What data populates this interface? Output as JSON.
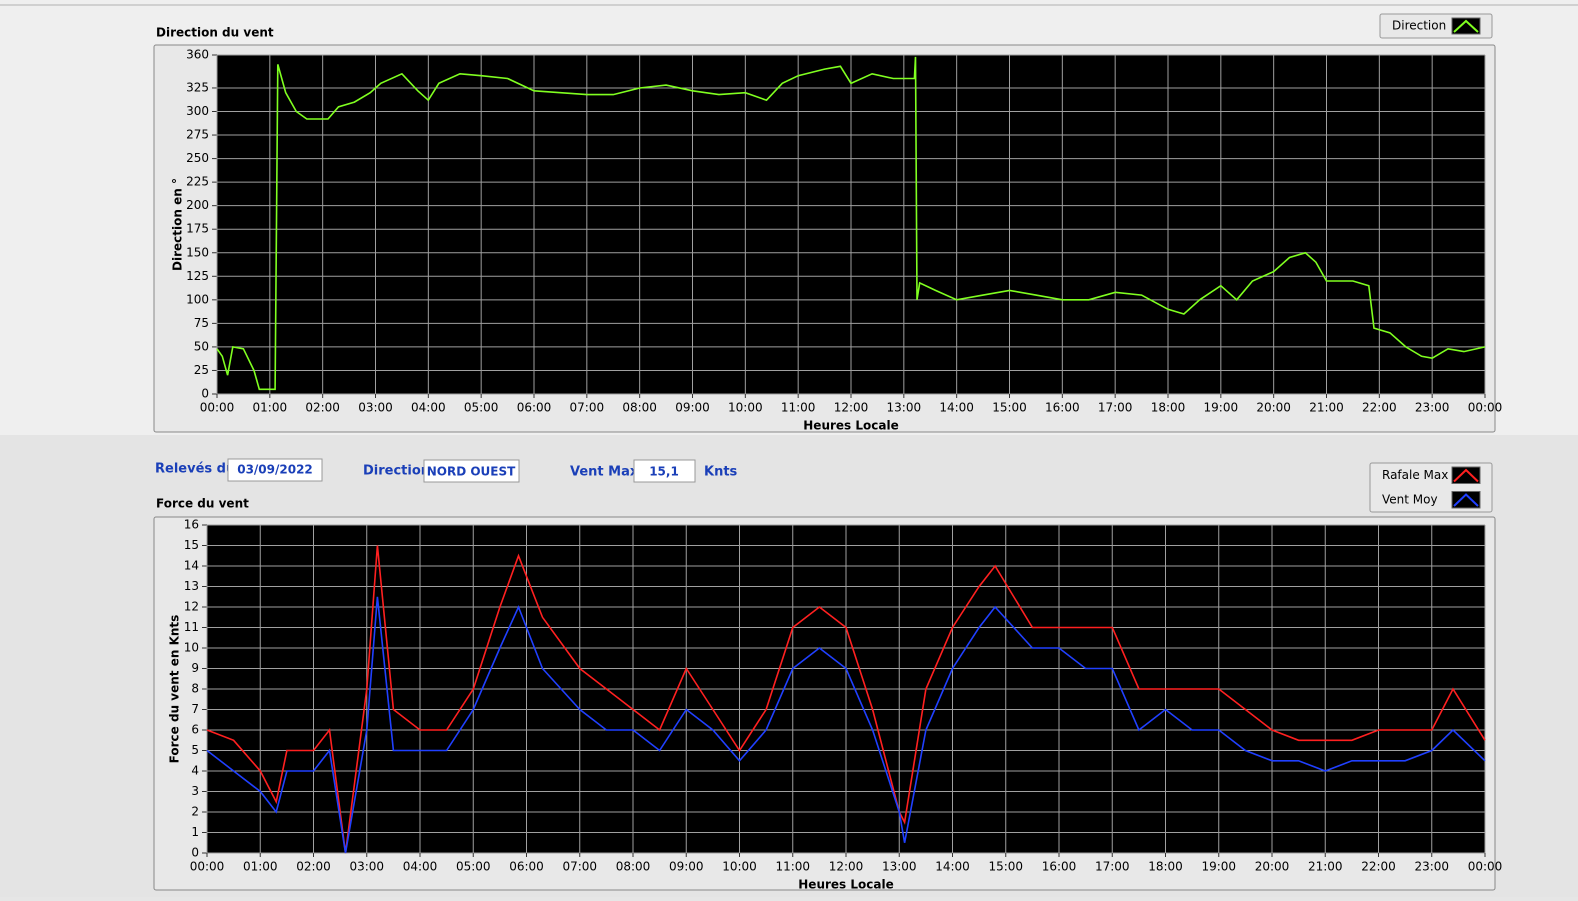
{
  "chart_data": [
    {
      "type": "line",
      "title": "Direction du vent",
      "x_label": "Heures Locale",
      "y_label": "Direction en °",
      "xlim": [
        0,
        24
      ],
      "xticks": [
        {
          "value": 0,
          "label": "00:00"
        },
        {
          "value": 1,
          "label": "01:00"
        },
        {
          "value": 2,
          "label": "02:00"
        },
        {
          "value": 3,
          "label": "03:00"
        },
        {
          "value": 4,
          "label": "04:00"
        },
        {
          "value": 5,
          "label": "05:00"
        },
        {
          "value": 6,
          "label": "06:00"
        },
        {
          "value": 7,
          "label": "07:00"
        },
        {
          "value": 8,
          "label": "08:00"
        },
        {
          "value": 9,
          "label": "09:00"
        },
        {
          "value": 10,
          "label": "10:00"
        },
        {
          "value": 11,
          "label": "11:00"
        },
        {
          "value": 12,
          "label": "12:00"
        },
        {
          "value": 13,
          "label": "13:00"
        },
        {
          "value": 14,
          "label": "14:00"
        },
        {
          "value": 15,
          "label": "15:00"
        },
        {
          "value": 16,
          "label": "16:00"
        },
        {
          "value": 17,
          "label": "17:00"
        },
        {
          "value": 18,
          "label": "18:00"
        },
        {
          "value": 19,
          "label": "19:00"
        },
        {
          "value": 20,
          "label": "20:00"
        },
        {
          "value": 21,
          "label": "21:00"
        },
        {
          "value": 22,
          "label": "22:00"
        },
        {
          "value": 23,
          "label": "23:00"
        },
        {
          "value": 24,
          "label": "00:00"
        }
      ],
      "ylim": [
        0,
        360
      ],
      "yticks": [
        0,
        25,
        50,
        75,
        100,
        125,
        150,
        175,
        200,
        225,
        250,
        275,
        300,
        325,
        360
      ],
      "grid": true,
      "legend": "top-right",
      "x": [
        0,
        0.1,
        0.2,
        0.3,
        0.5,
        0.7,
        0.8,
        1.1,
        1.15,
        1.3,
        1.5,
        1.7,
        2.1,
        2.3,
        2.6,
        2.9,
        3.1,
        3.5,
        3.8,
        4.0,
        4.2,
        4.6,
        5.0,
        5.5,
        6.0,
        6.5,
        7.0,
        7.5,
        8.0,
        8.5,
        9.0,
        9.5,
        10.0,
        10.4,
        10.7,
        11.0,
        11.5,
        11.8,
        12.0,
        12.4,
        12.8,
        13.2,
        13.22,
        13.25,
        13.3,
        13.6,
        14.0,
        14.5,
        15.0,
        15.5,
        16.0,
        16.5,
        17.0,
        17.5,
        18.0,
        18.3,
        18.6,
        19.0,
        19.3,
        19.6,
        20.0,
        20.3,
        20.6,
        20.8,
        21.0,
        21.5,
        21.8,
        21.9,
        22.2,
        22.5,
        22.8,
        23.0,
        23.3,
        23.6,
        24
      ],
      "series": [
        {
          "name": "Direction",
          "color": "#80ff20",
          "values": [
            48,
            40,
            20,
            50,
            48,
            25,
            5,
            5,
            350,
            320,
            300,
            292,
            292,
            305,
            310,
            320,
            330,
            340,
            322,
            312,
            330,
            340,
            338,
            335,
            322,
            320,
            318,
            318,
            325,
            328,
            322,
            318,
            320,
            312,
            330,
            338,
            345,
            348,
            330,
            340,
            335,
            335,
            358,
            100,
            118,
            110,
            100,
            105,
            110,
            105,
            100,
            100,
            108,
            105,
            90,
            85,
            100,
            115,
            100,
            120,
            130,
            145,
            150,
            140,
            120,
            120,
            115,
            70,
            65,
            50,
            40,
            38,
            48,
            45,
            50
          ]
        }
      ]
    },
    {
      "type": "line",
      "title": "Force du vent",
      "x_label": "Heures Locale",
      "y_label": "Force du vent en Knts",
      "xlim": [
        0,
        24
      ],
      "xticks": [
        {
          "value": 0,
          "label": "00:00"
        },
        {
          "value": 1,
          "label": "01:00"
        },
        {
          "value": 2,
          "label": "02:00"
        },
        {
          "value": 3,
          "label": "03:00"
        },
        {
          "value": 4,
          "label": "04:00"
        },
        {
          "value": 5,
          "label": "05:00"
        },
        {
          "value": 6,
          "label": "06:00"
        },
        {
          "value": 7,
          "label": "07:00"
        },
        {
          "value": 8,
          "label": "08:00"
        },
        {
          "value": 9,
          "label": "09:00"
        },
        {
          "value": 10,
          "label": "10:00"
        },
        {
          "value": 11,
          "label": "11:00"
        },
        {
          "value": 12,
          "label": "12:00"
        },
        {
          "value": 13,
          "label": "13:00"
        },
        {
          "value": 14,
          "label": "14:00"
        },
        {
          "value": 15,
          "label": "15:00"
        },
        {
          "value": 16,
          "label": "16:00"
        },
        {
          "value": 17,
          "label": "17:00"
        },
        {
          "value": 18,
          "label": "18:00"
        },
        {
          "value": 19,
          "label": "19:00"
        },
        {
          "value": 20,
          "label": "20:00"
        },
        {
          "value": 21,
          "label": "21:00"
        },
        {
          "value": 22,
          "label": "22:00"
        },
        {
          "value": 23,
          "label": "23:00"
        },
        {
          "value": 24,
          "label": "00:00"
        }
      ],
      "ylim": [
        0,
        16
      ],
      "yticks": [
        0,
        1,
        2,
        3,
        4,
        5,
        6,
        7,
        8,
        9,
        10,
        11,
        12,
        13,
        14,
        15,
        16
      ],
      "grid": true,
      "legend": "top-right",
      "x": [
        0,
        0.5,
        1,
        1.3,
        1.5,
        2,
        2.3,
        2.6,
        3,
        3.2,
        3.5,
        4,
        4.5,
        5,
        5.5,
        5.85,
        6.3,
        7,
        7.5,
        8,
        8.5,
        9,
        9.5,
        10,
        10.5,
        11,
        11.5,
        12,
        12.5,
        13,
        13.1,
        13.5,
        14,
        14.5,
        14.8,
        15.5,
        16,
        16.5,
        17,
        17.5,
        18,
        18.5,
        19,
        19.5,
        20,
        20.5,
        21,
        21.5,
        22,
        22.5,
        23,
        23.4,
        24
      ],
      "series": [
        {
          "name": "Rafale Max",
          "color": "#ff2020",
          "values": [
            6,
            5.5,
            4,
            2.5,
            5,
            5,
            6,
            0,
            8,
            15,
            7,
            6,
            6,
            8,
            12,
            14.5,
            11.5,
            9,
            8,
            7,
            6,
            9,
            7,
            5,
            7,
            11,
            12,
            11,
            7,
            2,
            1.5,
            8,
            11,
            13,
            14,
            11,
            11,
            11,
            11,
            8,
            8,
            8,
            8,
            7,
            6,
            5.5,
            5.5,
            5.5,
            6,
            6,
            6,
            8,
            5.5
          ]
        },
        {
          "name": "Vent Moy",
          "color": "#2040ff",
          "values": [
            5,
            4,
            3,
            2,
            4,
            4,
            5,
            0,
            6,
            12.5,
            5,
            5,
            5,
            7,
            10,
            12,
            9,
            7,
            6,
            6,
            5,
            7,
            6,
            4.5,
            6,
            9,
            10,
            9,
            6,
            2,
            0.5,
            6,
            9,
            11,
            12,
            10,
            10,
            9,
            9,
            6,
            7,
            6,
            6,
            5,
            4.5,
            4.5,
            4,
            4.5,
            4.5,
            4.5,
            5,
            6,
            4.5
          ]
        }
      ]
    }
  ],
  "form": {
    "date_label": "Relevés du",
    "date": "03/09/2022",
    "direction_label": "Direction",
    "direction": "NORD OUEST",
    "max_label": "Vent Max",
    "max": "15,1",
    "max_unit": "Knts"
  }
}
